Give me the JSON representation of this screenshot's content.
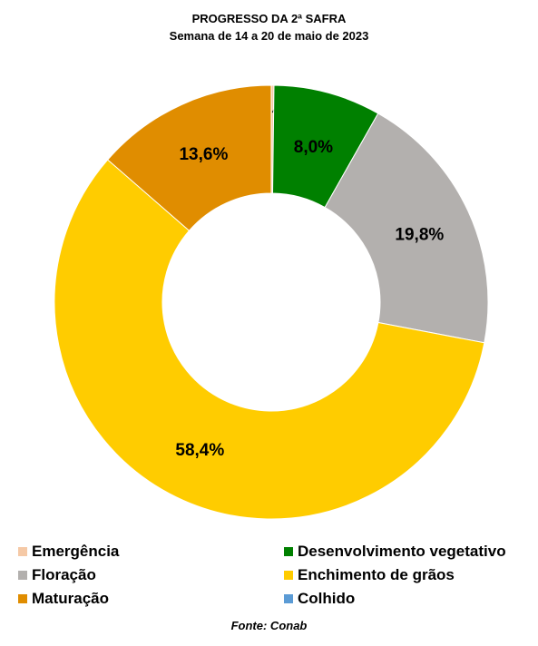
{
  "chart_data": {
    "type": "pie",
    "title": "PROGRESSO DA 2ª SAFRA",
    "subtitle": "Semana de 14 a 20 de maio de 2023",
    "categories": [
      "Emergência",
      "Desenvolvimento vegetativo",
      "Floração",
      "Enchimento de grãos",
      "Maturação",
      "Colhido"
    ],
    "values": [
      0.2,
      8.0,
      19.8,
      58.4,
      13.6,
      0.0
    ],
    "value_labels": [
      "0,2%",
      "8,0%",
      "19,8%",
      "58,4%",
      "13,6%",
      ""
    ],
    "colors": [
      "#f5c9a6",
      "#008000",
      "#b3b0ae",
      "#ffcc00",
      "#e08d00",
      "#5b9bd5"
    ],
    "donut": true,
    "legend_position": "bottom"
  },
  "source": "Fonte: Conab"
}
